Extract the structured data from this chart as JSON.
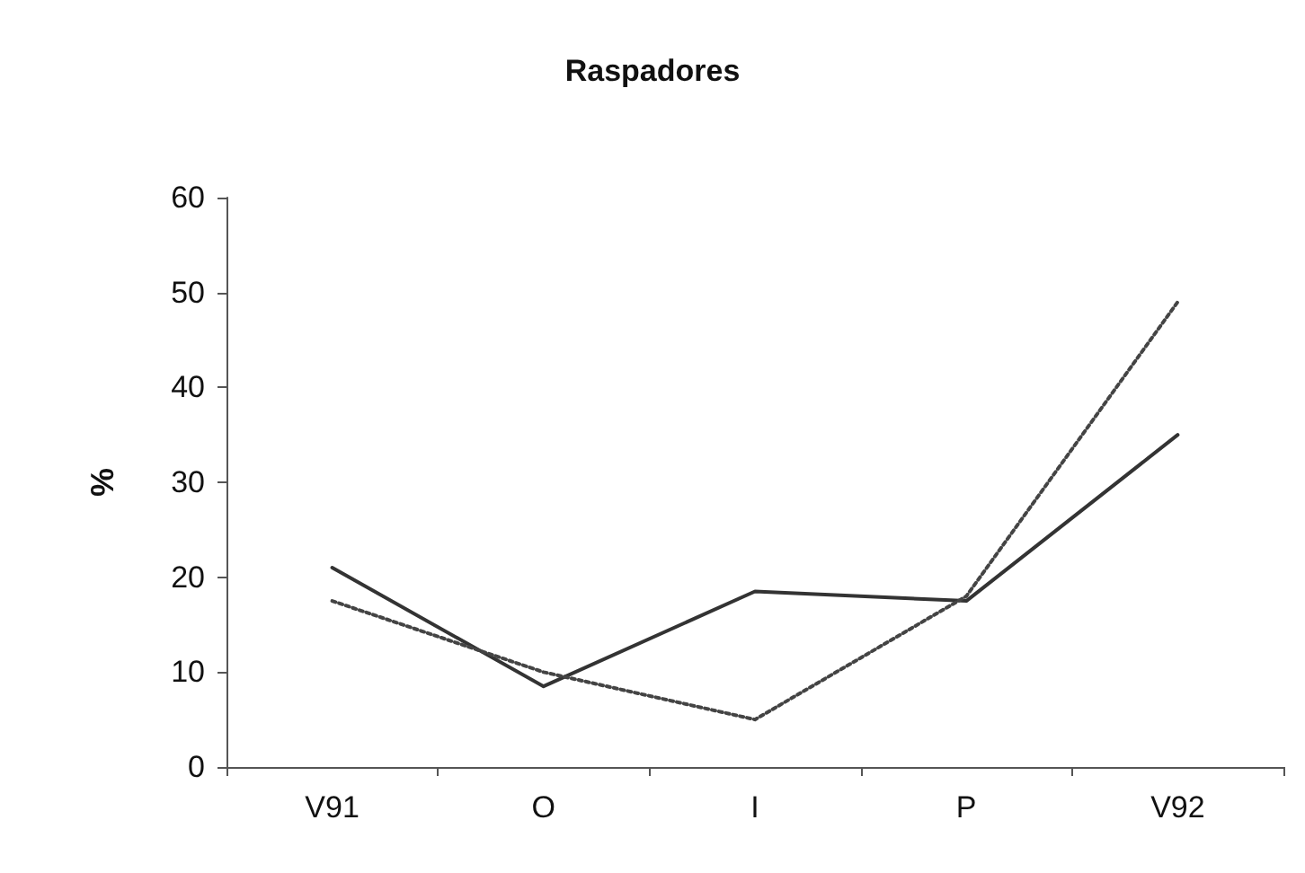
{
  "chart_data": {
    "type": "line",
    "title": "Raspadores",
    "ylabel": "%",
    "categories": [
      "V91",
      "O",
      "I",
      "P",
      "V92"
    ],
    "series": [
      {
        "color": "#333333",
        "line_style": "solid",
        "values": [
          21,
          8.5,
          18.5,
          17.5,
          35
        ]
      },
      {
        "color": "#444444",
        "line_style": "dotted",
        "values": [
          17.5,
          10,
          5,
          18,
          49
        ]
      }
    ],
    "ylim": [
      0,
      60
    ],
    "yticks": [
      0,
      10,
      20,
      30,
      40,
      50,
      60
    ],
    "grid": false,
    "marker": "none"
  }
}
